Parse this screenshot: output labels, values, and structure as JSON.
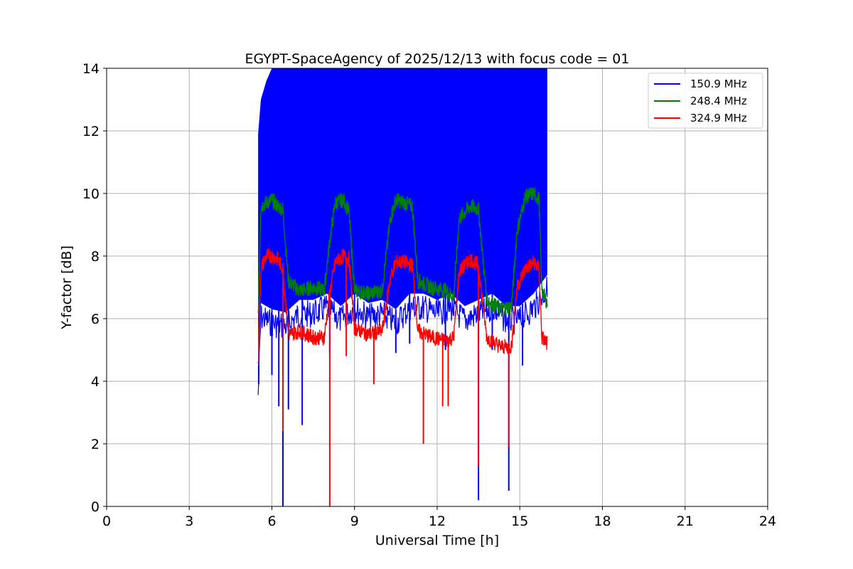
{
  "chart_data": {
    "type": "line",
    "title": "EGYPT-SpaceAgency of 2025/12/13 with focus code = 01",
    "xlabel": "Universal Time [h]",
    "ylabel": "Y-factor [dB]",
    "xlim": [
      0,
      24
    ],
    "ylim": [
      0,
      14
    ],
    "xticks": [
      0,
      3,
      6,
      9,
      12,
      15,
      18,
      21,
      24
    ],
    "yticks": [
      0,
      2,
      4,
      6,
      8,
      10,
      12,
      14
    ],
    "grid": true,
    "legend_position": "top-right",
    "series": [
      {
        "name": "150.9 MHz",
        "color": "#0000ff",
        "band": {
          "x": [
            5.5,
            5.6,
            5.8,
            6.0,
            6.5,
            7.0,
            7.5,
            8.0,
            8.5,
            9.0,
            9.5,
            10.0,
            10.5,
            11.0,
            11.5,
            12.0,
            12.5,
            13.0,
            13.5,
            14.0,
            14.5,
            15.0,
            15.5,
            16.0
          ],
          "upper": [
            11.9,
            13.0,
            13.6,
            14.0,
            14.0,
            14.0,
            14.0,
            14.0,
            14.0,
            14.0,
            14.0,
            14.0,
            14.0,
            14.0,
            14.0,
            14.0,
            14.0,
            14.0,
            14.0,
            14.0,
            14.0,
            14.0,
            14.0,
            14.0
          ],
          "lower": [
            4.0,
            6.5,
            6.4,
            6.3,
            6.2,
            6.6,
            6.6,
            6.8,
            6.4,
            6.8,
            6.5,
            6.6,
            6.3,
            6.8,
            6.8,
            6.6,
            6.8,
            6.4,
            6.6,
            6.8,
            6.4,
            6.4,
            6.8,
            7.4
          ]
        },
        "spikes": [
          [
            5.52,
            3.9
          ],
          [
            6.0,
            4.2
          ],
          [
            6.25,
            3.2
          ],
          [
            6.4,
            0.0
          ],
          [
            6.6,
            3.1
          ],
          [
            7.1,
            2.6
          ],
          [
            8.1,
            4.9
          ],
          [
            9.0,
            5.5
          ],
          [
            10.5,
            4.9
          ],
          [
            11.0,
            5.2
          ],
          [
            12.3,
            5.0
          ],
          [
            13.5,
            0.2
          ],
          [
            14.0,
            5.0
          ],
          [
            14.6,
            0.5
          ],
          [
            15.1,
            4.5
          ]
        ]
      },
      {
        "name": "248.4 MHz",
        "color": "#008000",
        "x": [
          5.5,
          5.6,
          5.8,
          6.0,
          6.2,
          6.4,
          6.6,
          7.0,
          7.5,
          7.9,
          8.1,
          8.3,
          8.6,
          8.8,
          9.0,
          9.5,
          10.0,
          10.3,
          10.5,
          10.8,
          11.1,
          11.3,
          11.8,
          12.3,
          12.6,
          12.8,
          13.2,
          13.5,
          13.8,
          14.3,
          14.7,
          14.9,
          15.2,
          15.5,
          15.7,
          15.8,
          16.0
        ],
        "y": [
          6.0,
          9.6,
          9.7,
          9.8,
          9.6,
          9.5,
          7.2,
          6.9,
          7.0,
          6.9,
          8.5,
          9.7,
          9.8,
          9.4,
          6.9,
          6.8,
          6.9,
          9.2,
          9.8,
          9.7,
          9.6,
          7.2,
          7.0,
          6.9,
          6.7,
          9.2,
          9.6,
          9.5,
          6.6,
          6.3,
          6.4,
          8.8,
          9.9,
          10.0,
          9.8,
          6.9,
          6.5
        ]
      },
      {
        "name": "324.9 MHz",
        "color": "#ff0000",
        "x": [
          5.5,
          5.6,
          5.8,
          6.0,
          6.2,
          6.4,
          6.6,
          7.0,
          7.5,
          7.9,
          8.1,
          8.3,
          8.6,
          8.8,
          9.0,
          9.5,
          10.0,
          10.3,
          10.5,
          10.8,
          11.1,
          11.3,
          11.8,
          12.3,
          12.6,
          12.8,
          13.2,
          13.5,
          13.8,
          14.3,
          14.7,
          14.9,
          15.2,
          15.5,
          15.7,
          15.8,
          16.0
        ],
        "y": [
          4.4,
          7.6,
          8.0,
          8.0,
          7.9,
          7.6,
          5.5,
          5.6,
          5.4,
          5.4,
          6.8,
          7.8,
          8.0,
          7.9,
          5.7,
          5.5,
          5.6,
          7.3,
          7.8,
          7.8,
          7.7,
          5.6,
          5.4,
          5.3,
          5.4,
          7.5,
          7.9,
          7.7,
          5.4,
          5.1,
          5.1,
          7.0,
          7.6,
          7.8,
          7.6,
          5.4,
          5.2
        ],
        "spikes": [
          [
            6.4,
            2.4
          ],
          [
            8.1,
            0.0
          ],
          [
            8.7,
            4.8
          ],
          [
            9.7,
            3.9
          ],
          [
            11.5,
            2.0
          ],
          [
            12.2,
            3.2
          ],
          [
            12.4,
            3.2
          ],
          [
            13.5,
            1.3
          ],
          [
            14.6,
            1.9
          ]
        ]
      }
    ]
  }
}
